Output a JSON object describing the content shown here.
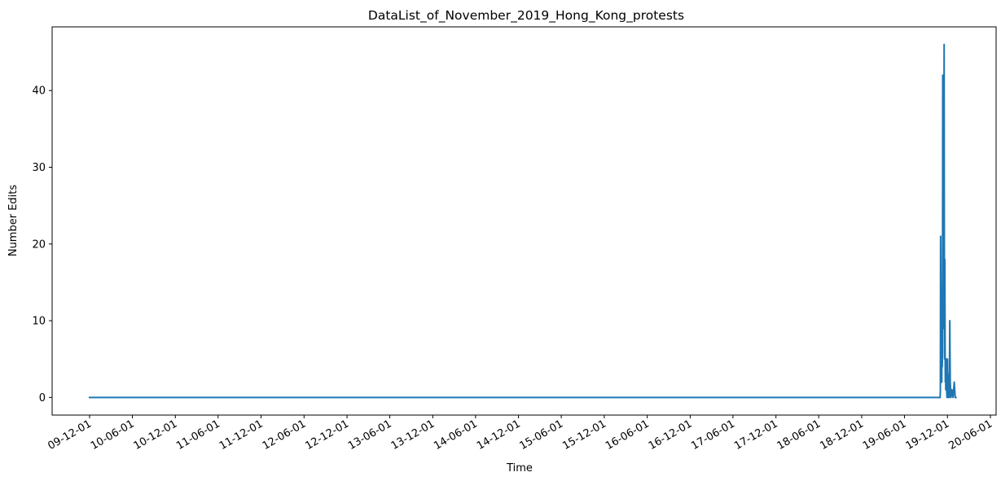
{
  "chart_data": {
    "type": "line",
    "title": "DataList_of_November_2019_Hong_Kong_protests",
    "xlabel": "Time",
    "ylabel": "Number Edits",
    "x_tick_labels": [
      "09-12-01",
      "10-06-01",
      "10-12-01",
      "11-06-01",
      "11-12-01",
      "12-06-01",
      "12-12-01",
      "13-06-01",
      "13-12-01",
      "14-06-01",
      "14-12-01",
      "15-06-01",
      "15-12-01",
      "16-06-01",
      "16-12-01",
      "17-06-01",
      "17-12-01",
      "18-06-01",
      "18-12-01",
      "19-06-01",
      "19-12-01",
      "20-06-01"
    ],
    "y_ticks": [
      0,
      10,
      20,
      30,
      40
    ],
    "ylim": [
      -2.3,
      48.3
    ],
    "grid": false,
    "line_color": "#1f77b4",
    "series": [
      {
        "x": [
          "2009-12-01",
          "2019-10-31",
          "2019-11-01",
          "2019-11-02",
          "2019-11-03",
          "2019-11-04",
          "2019-11-05",
          "2019-11-06",
          "2019-11-07",
          "2019-11-08",
          "2019-11-09",
          "2019-11-10",
          "2019-11-11",
          "2019-11-12",
          "2019-11-13",
          "2019-11-14",
          "2019-11-15",
          "2019-11-16",
          "2019-11-17",
          "2019-11-18",
          "2019-11-19",
          "2019-11-20",
          "2019-11-21",
          "2019-11-22",
          "2019-11-23",
          "2019-11-24",
          "2019-11-25",
          "2019-11-26",
          "2019-11-27",
          "2019-11-28",
          "2019-11-29",
          "2019-11-30",
          "2019-12-01",
          "2019-12-03",
          "2019-12-05",
          "2019-12-07",
          "2019-12-09",
          "2019-12-11",
          "2019-12-13",
          "2019-12-16",
          "2019-12-20",
          "2019-12-25",
          "2019-12-30",
          "2020-01-03",
          "2020-01-06"
        ],
        "y": [
          0,
          0,
          1,
          21,
          15,
          10,
          3,
          7,
          2,
          13,
          4,
          6,
          42,
          12,
          25,
          18,
          9,
          31,
          46,
          14,
          5,
          18,
          7,
          2,
          4,
          1,
          3,
          2,
          5,
          1,
          0,
          2,
          5,
          0,
          3,
          1,
          0,
          10,
          2,
          0,
          1,
          0,
          2,
          0,
          0
        ]
      }
    ]
  }
}
